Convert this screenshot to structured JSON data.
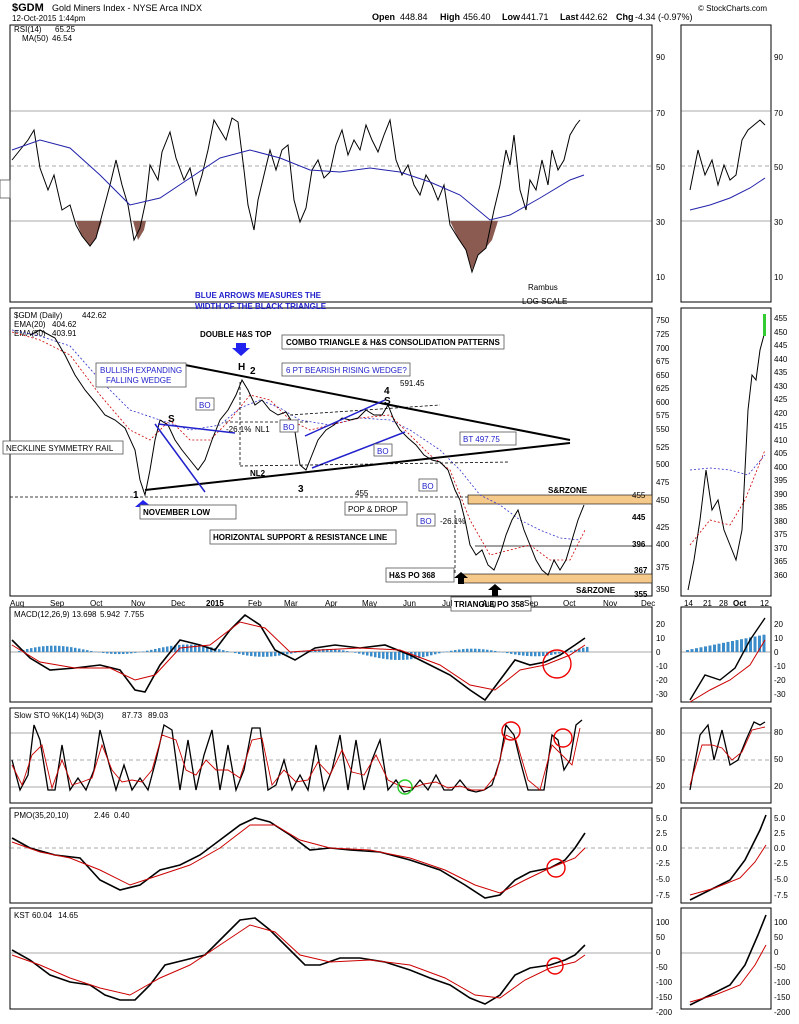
{
  "header": {
    "symbol": "$GDM",
    "name": "Gold Miners Index - NYSE Arca INDX",
    "date": "12-Oct-2015 1:44pm",
    "open_label": "Open",
    "open": "448.84",
    "high_label": "High",
    "high": "456.40",
    "low_label": "Low",
    "low": "441.71",
    "last_label": "Last",
    "last": "442.62",
    "change_label": "Chg",
    "change": "-4.34 (-0.97%)",
    "copyright": "© StockCharts.com"
  },
  "rsi": {
    "label": "RSI(14)",
    "value": "65.25",
    "ma_label": "MA(50)",
    "ma_value": "46.54",
    "ticks": [
      "90",
      "70",
      "50",
      "30",
      "10"
    ],
    "small_ticks": [
      "90",
      "70",
      "50",
      "30",
      "10"
    ],
    "left_value": "0"
  },
  "price": {
    "legend_title": "$GDM (Daily)",
    "legend_value": "442.62",
    "ema20_label": "EMA(20)",
    "ema20_value": "404.62",
    "ema50_label": "EMA(50)",
    "ema50_value": "403.91",
    "ticks": [
      "750",
      "725",
      "700",
      "675",
      "650",
      "625",
      "600",
      "575",
      "550",
      "525",
      "500",
      "475",
      "450",
      "425",
      "400",
      "375",
      "350"
    ],
    "small_ticks": [
      "455",
      "450",
      "445",
      "440",
      "435",
      "430",
      "425",
      "420",
      "415",
      "410",
      "405",
      "400",
      "395",
      "390",
      "385",
      "380",
      "375",
      "370",
      "365",
      "360"
    ]
  },
  "annotations": {
    "blue_arrows": "BLUE ARROWS MEASURES THE",
    "blue_arrows2": "WIDTH OF THE BLACK TRIANGLE",
    "rambus": "Rambus",
    "log_scale": "LOG SCALE",
    "double_top": "DOUBLE H&S TOP",
    "combo": "COMBO TRIANGLE & H&S CONSOLIDATION PATTERNS",
    "bullish1": "BULLISH EXPANDING",
    "bullish2": "FALLING WEDGE",
    "wedge": "6 PT BEARISH RISING WEDGE?",
    "neckline": "NECKLINE SYMMETRY RAIL",
    "november_low": "NOVEMBER LOW",
    "horizontal": "HORIZONTAL SUPPORT & RESISTANCE LINE",
    "pop_drop": "POP & DROP",
    "bt": "BT 497.75",
    "hs_po": "H&S PO 368",
    "triangle_po": "TRIANGLE PO 358",
    "sr1": "S&RZONE",
    "sr2": "S&RZONE",
    "nl1": "NL1",
    "nl2": "NL2",
    "pct1": "-26.1%",
    "pct2": "-26.1%",
    "v591": "591.45",
    "v455a": "455",
    "v455b": "455",
    "v445": "445",
    "v396": "396",
    "v367": "367",
    "v355": "355",
    "bo": "BO",
    "h": "H",
    "s": "S",
    "n1": "1",
    "n2": "2",
    "n3": "3",
    "n4": "4"
  },
  "x_axis": {
    "labels": [
      "Aug",
      "Sep",
      "Oct",
      "Nov",
      "Dec",
      "2015",
      "Feb",
      "Mar",
      "Apr",
      "May",
      "Jun",
      "Jul",
      "Aug",
      "Sep",
      "Oct",
      "Nov",
      "Dec"
    ],
    "small_labels": [
      "14",
      "21",
      "28",
      "Oct",
      "12"
    ]
  },
  "macd": {
    "label": "MACD(12,26,9)",
    "v1": "13.698",
    "v2": "5.942",
    "v3": "7.755",
    "ticks": [
      "20",
      "10",
      "0",
      "-10",
      "-20",
      "-30"
    ]
  },
  "sto": {
    "label": "Slow STO %K(14) %D(3)",
    "v1": "87.73",
    "v2": "89.03",
    "ticks": [
      "80",
      "50",
      "20"
    ]
  },
  "pmo": {
    "label": "PMO(35,20,10)",
    "v1": "2.46",
    "v2": "0.40",
    "ticks": [
      "5.0",
      "2.5",
      "0.0",
      "-2.5",
      "-5.0",
      "-7.5"
    ]
  },
  "kst": {
    "label": "KST",
    "v1": "60.04",
    "v2": "14.65",
    "ticks": [
      "100",
      "50",
      "0",
      "-50",
      "-100",
      "-150",
      "-200"
    ]
  },
  "chart_data": {
    "type": "line",
    "title": "$GDM Gold Miners Index - NYSE Arca INDX",
    "scale": "log",
    "x": [
      "Aug",
      "Sep",
      "Oct",
      "Nov",
      "Dec",
      "2015",
      "Feb",
      "Mar",
      "Apr",
      "May",
      "Jun",
      "Jul",
      "Aug",
      "Sep",
      "Oct"
    ],
    "series": [
      {
        "name": "$GDM (Daily)",
        "values": [
          735,
          690,
          600,
          475,
          560,
          545,
          655,
          585,
          560,
          590,
          540,
          460,
          390,
          375,
          442
        ]
      }
    ],
    "ylim": [
      340,
      760
    ],
    "colors": {
      "price": "#000000",
      "ema20": "#cc0000",
      "ema50": "#0000cc",
      "zone": "#f5c98a",
      "rsi_fill": "#8b5a50"
    }
  }
}
